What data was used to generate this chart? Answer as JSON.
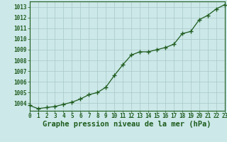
{
  "x": [
    0,
    1,
    2,
    3,
    4,
    5,
    6,
    7,
    8,
    9,
    10,
    11,
    12,
    13,
    14,
    15,
    16,
    17,
    18,
    19,
    20,
    21,
    22,
    23
  ],
  "y": [
    1003.8,
    1003.5,
    1003.6,
    1003.7,
    1003.9,
    1004.1,
    1004.4,
    1004.8,
    1005.0,
    1005.5,
    1006.6,
    1007.6,
    1008.5,
    1008.8,
    1008.8,
    1009.0,
    1009.2,
    1009.5,
    1010.5,
    1010.7,
    1011.8,
    1012.2,
    1012.8,
    1013.2
  ],
  "ylim": [
    1003.3,
    1013.5
  ],
  "xlim": [
    0,
    23
  ],
  "yticks": [
    1004,
    1005,
    1006,
    1007,
    1008,
    1009,
    1010,
    1011,
    1012,
    1013
  ],
  "xticks": [
    0,
    1,
    2,
    3,
    4,
    5,
    6,
    7,
    8,
    9,
    10,
    11,
    12,
    13,
    14,
    15,
    16,
    17,
    18,
    19,
    20,
    21,
    22,
    23
  ],
  "xlabel": "Graphe pression niveau de la mer (hPa)",
  "line_color": "#1e5c1e",
  "marker": "+",
  "marker_size": 4,
  "line_width": 0.9,
  "bg_color": "#cce8e8",
  "plot_bg": "#cce8e8",
  "grid_color": "#aac8c8",
  "axis_color": "#1e5c1e",
  "label_color": "#1e5c1e",
  "bottom_bar_color": "#2d6a2d",
  "tick_fontsize": 5.5,
  "xlabel_fontsize": 7.5
}
